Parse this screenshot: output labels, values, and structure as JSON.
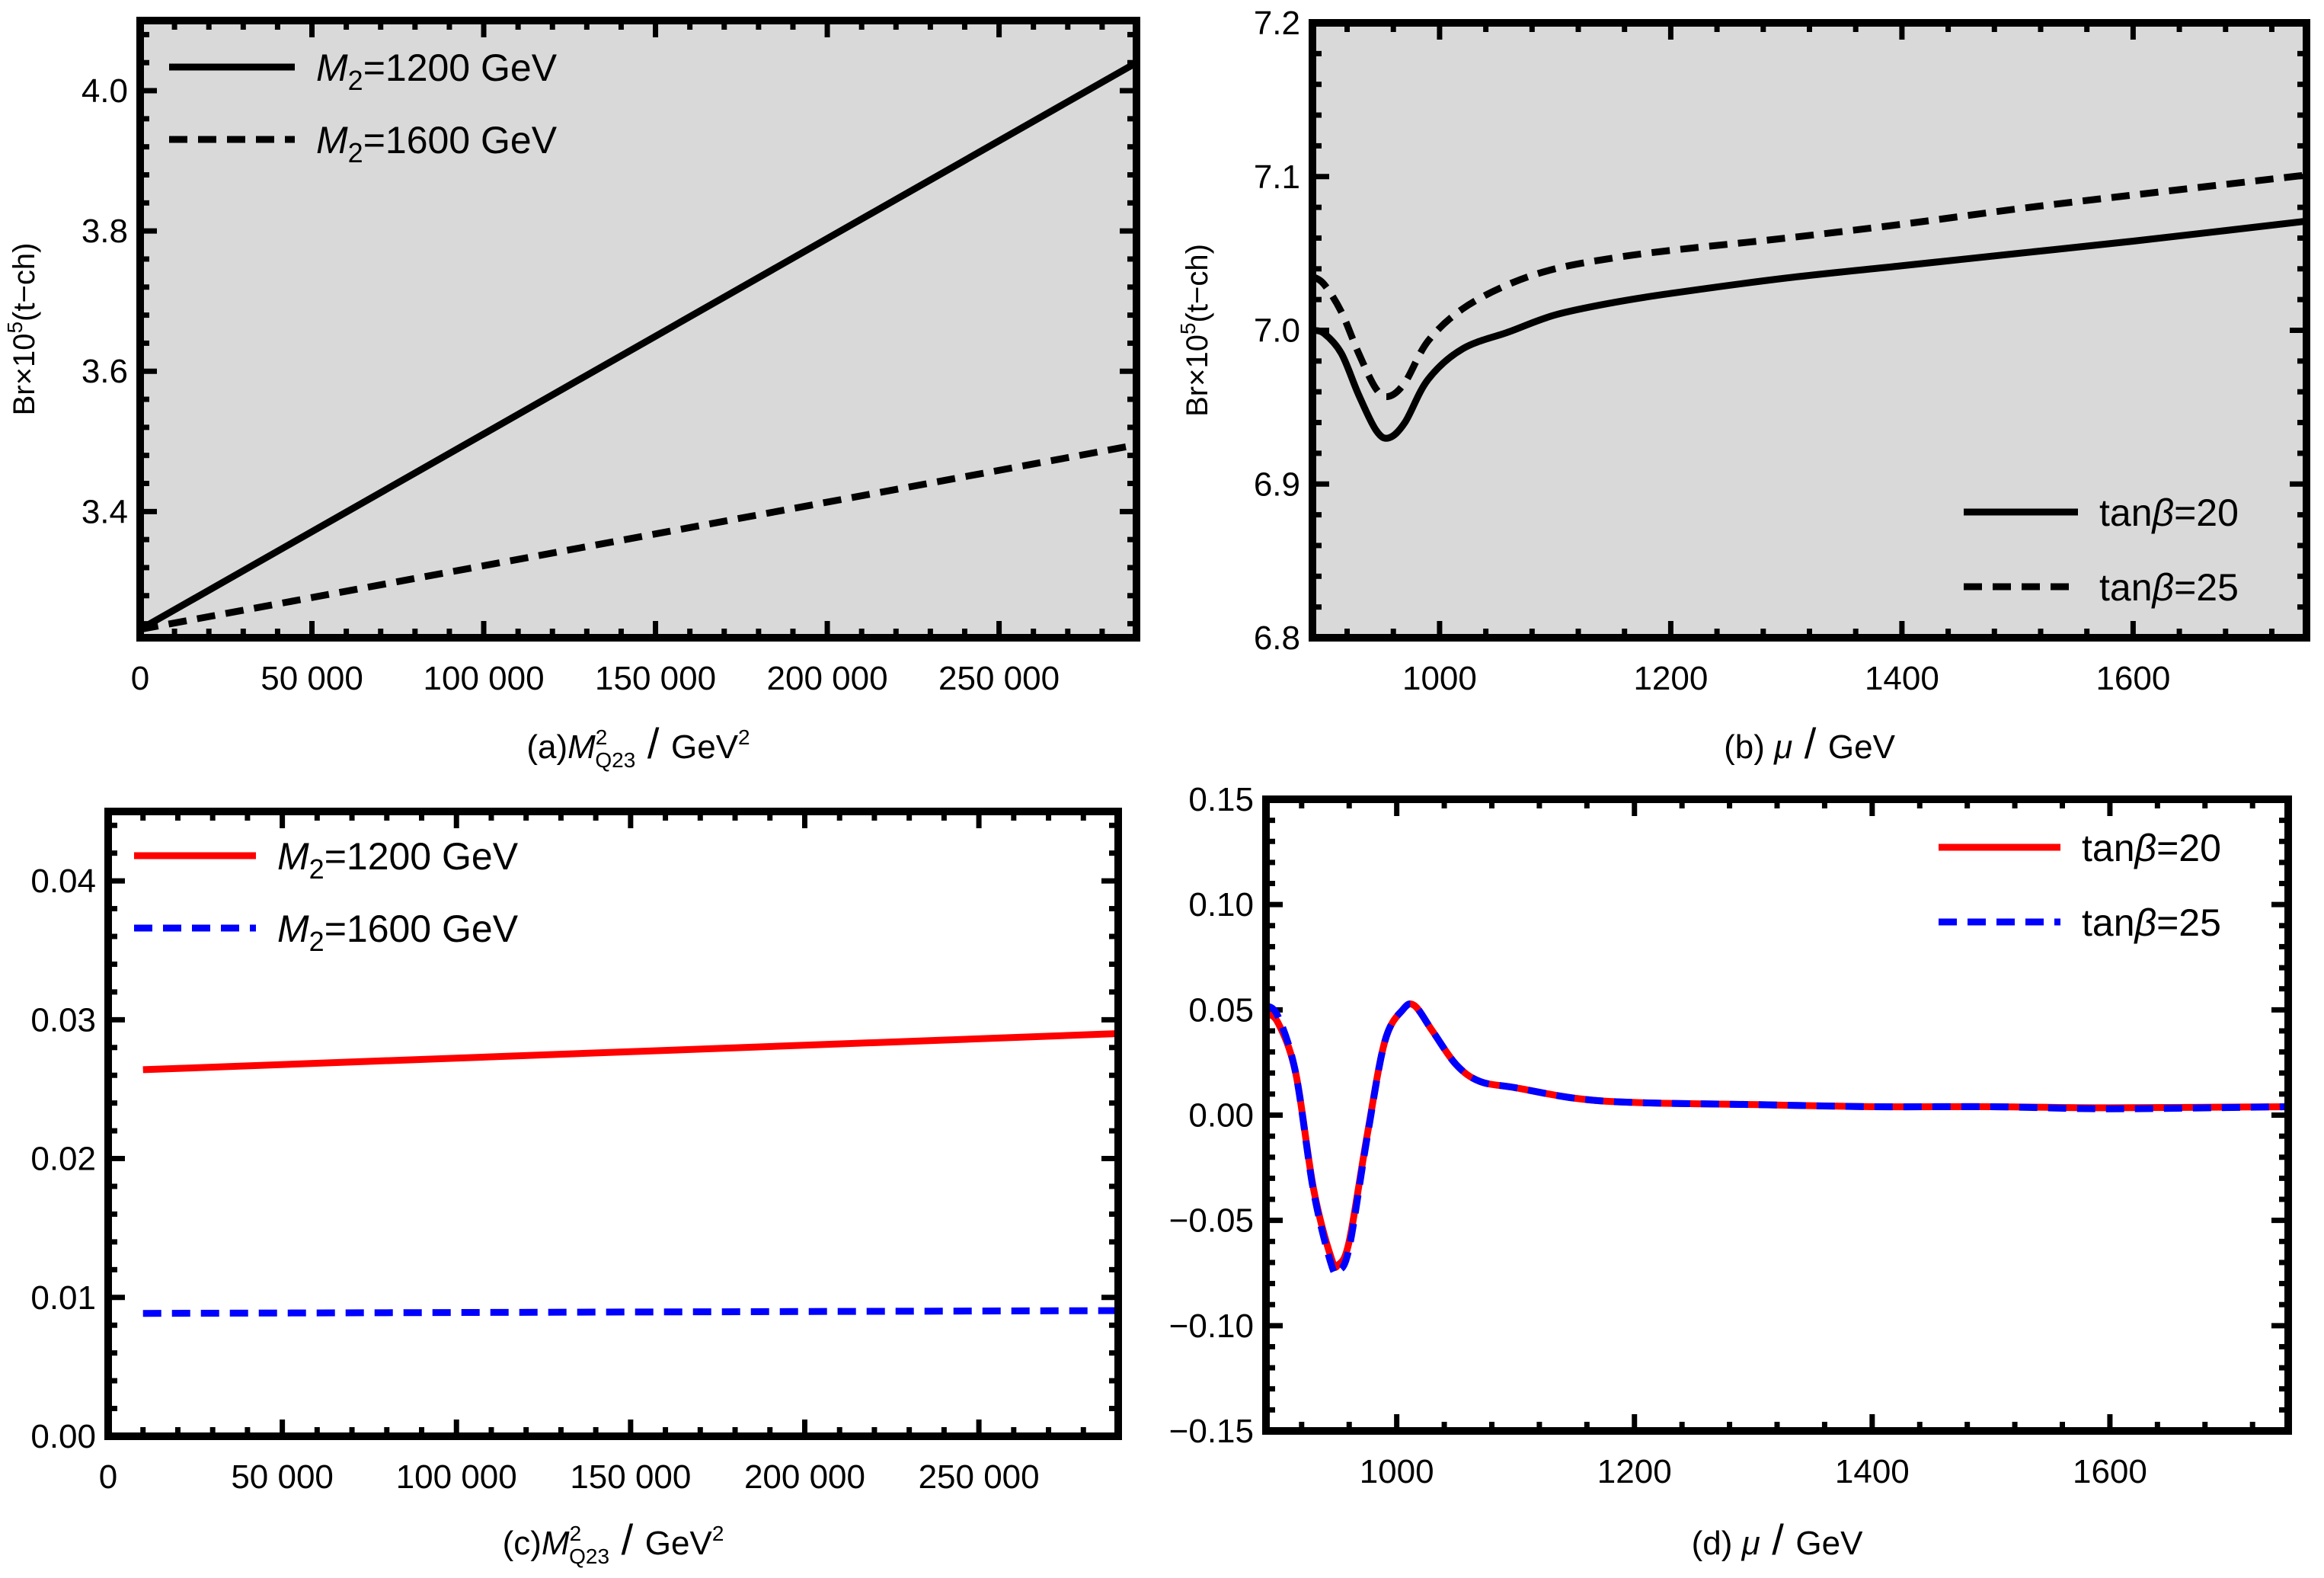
{
  "chart_data": [
    {
      "id": "a",
      "type": "line",
      "caption": {
        "prefix": "(a)",
        "var": "M",
        "sup": "2",
        "sub": "Q23",
        "unit": "GeV",
        "unit_sup": "2"
      },
      "xlabel": "(a) M²_Q23 / GeV²",
      "ylabel": {
        "base": "Br×10",
        "sup": "5",
        "rest": "(t−ch)"
      },
      "xlim": [
        0,
        290000
      ],
      "ylim": [
        3.22,
        4.1
      ],
      "xticks": [
        0,
        50000,
        100000,
        150000,
        200000,
        250000
      ],
      "xtick_labels": [
        "0",
        "50 000",
        "100 000",
        "150 000",
        "200 000",
        "250 000"
      ],
      "yticks": [
        3.4,
        3.6,
        3.8,
        4.0
      ],
      "ytick_labels": [
        "3.4",
        "3.6",
        "3.8",
        "4.0"
      ],
      "background": "#d9d9d9",
      "legend_position": "top-left",
      "series": [
        {
          "name": "M2=1200 GeV",
          "label_var": "M",
          "label_sub": "2",
          "label_rest": "=1200 GeV",
          "color": "#000000",
          "dash": "solid",
          "x": [
            0,
            290000
          ],
          "y": [
            3.232,
            4.04
          ]
        },
        {
          "name": "M2=1600 GeV",
          "label_var": "M",
          "label_sub": "2",
          "label_rest": "=1600 GeV",
          "color": "#000000",
          "dash": "dashed",
          "x": [
            0,
            290000
          ],
          "y": [
            3.232,
            3.495
          ]
        }
      ]
    },
    {
      "id": "b",
      "type": "line",
      "caption": {
        "prefix": "(b)",
        "var": "μ",
        "unit": "GeV"
      },
      "xlabel": "(b) μ / GeV",
      "ylabel": {
        "base": "Br×10",
        "sup": "5",
        "rest": "(t−ch)"
      },
      "xlim": [
        890,
        1750
      ],
      "ylim": [
        6.8,
        7.2
      ],
      "xticks": [
        1000,
        1200,
        1400,
        1600
      ],
      "xtick_labels": [
        "1000",
        "1200",
        "1400",
        "1600"
      ],
      "yticks": [
        6.8,
        6.9,
        7.0,
        7.1,
        7.2
      ],
      "ytick_labels": [
        "6.8",
        "6.9",
        "7.0",
        "7.1",
        "7.2"
      ],
      "background": "#d9d9d9",
      "legend_position": "bottom-right",
      "series": [
        {
          "name": "tanβ=20",
          "label_var": "tan",
          "label_greek": "β",
          "label_rest": "=20",
          "color": "#000000",
          "dash": "solid",
          "x": [
            890,
            900,
            915,
            930,
            945,
            956,
            970,
            990,
            1020,
            1060,
            1100,
            1150,
            1200,
            1300,
            1400,
            1500,
            1600,
            1750
          ],
          "y": [
            7.0,
            6.998,
            6.985,
            6.958,
            6.935,
            6.93,
            6.94,
            6.968,
            6.988,
            6.999,
            7.01,
            7.018,
            7.024,
            7.034,
            7.042,
            7.05,
            7.058,
            7.071
          ]
        },
        {
          "name": "tanβ=25",
          "label_var": "tan",
          "label_greek": "β",
          "label_rest": "=25",
          "color": "#000000",
          "dash": "dashed",
          "x": [
            890,
            900,
            915,
            930,
            945,
            956,
            970,
            990,
            1020,
            1060,
            1100,
            1150,
            1200,
            1300,
            1400,
            1500,
            1600,
            1750
          ],
          "y": [
            7.035,
            7.03,
            7.012,
            6.985,
            6.962,
            6.957,
            6.966,
            6.993,
            7.014,
            7.03,
            7.04,
            7.047,
            7.052,
            7.06,
            7.069,
            7.079,
            7.088,
            7.101
          ]
        }
      ]
    },
    {
      "id": "c",
      "type": "line",
      "caption": {
        "prefix": "(c)",
        "var": "M",
        "sup": "2",
        "sub": "Q23",
        "unit": "GeV",
        "unit_sup": "2"
      },
      "xlabel": "(c) M²_Q23 / GeV²",
      "ylabel": "",
      "xlim": [
        0,
        290000
      ],
      "ylim": [
        0.0,
        0.045
      ],
      "xticks": [
        0,
        50000,
        100000,
        150000,
        200000,
        250000
      ],
      "xtick_labels": [
        "0",
        "50 000",
        "100 000",
        "150 000",
        "200 000",
        "250 000"
      ],
      "yticks": [
        0.0,
        0.01,
        0.02,
        0.03,
        0.04
      ],
      "ytick_labels": [
        "0.00",
        "0.01",
        "0.02",
        "0.03",
        "0.04"
      ],
      "background": "#ffffff",
      "legend_position": "top-left",
      "series": [
        {
          "name": "M2=1200 GeV",
          "label_var": "M",
          "label_sub": "2",
          "label_rest": "=1200 GeV",
          "color": "#ff0000",
          "dash": "solid",
          "x": [
            10000,
            290000
          ],
          "y": [
            0.0264,
            0.029
          ]
        },
        {
          "name": "M2=1600 GeV",
          "label_var": "M",
          "label_sub": "2",
          "label_rest": "=1600 GeV",
          "color": "#0000ff",
          "dash": "dashed",
          "x": [
            10000,
            290000
          ],
          "y": [
            0.00885,
            0.00905
          ]
        }
      ]
    },
    {
      "id": "d",
      "type": "line",
      "caption": {
        "prefix": "(d)",
        "var": "μ",
        "unit": "GeV"
      },
      "xlabel": "(d) μ / GeV",
      "ylabel": "",
      "xlim": [
        890,
        1750
      ],
      "ylim": [
        -0.15,
        0.15
      ],
      "xticks": [
        1000,
        1200,
        1400,
        1600
      ],
      "xtick_labels": [
        "1000",
        "1200",
        "1400",
        "1600"
      ],
      "yticks": [
        -0.15,
        -0.1,
        -0.05,
        0.0,
        0.05,
        0.1,
        0.15
      ],
      "ytick_labels": [
        "−0.15",
        "−0.10",
        "−0.05",
        "0.00",
        "0.05",
        "0.10",
        "0.15"
      ],
      "background": "#ffffff",
      "legend_position": "top-right",
      "series": [
        {
          "name": "tanβ=20",
          "label_var": "tan",
          "label_greek": "β",
          "label_rest": "=20",
          "color": "#ff0000",
          "dash": "solid",
          "x": [
            890,
            900,
            915,
            930,
            945,
            951,
            960,
            975,
            990,
            1005,
            1015,
            1030,
            1050,
            1070,
            1100,
            1150,
            1200,
            1300,
            1400,
            1500,
            1600,
            1750
          ],
          "y": [
            0.048,
            0.044,
            0.02,
            -0.035,
            -0.068,
            -0.071,
            -0.06,
            -0.01,
            0.035,
            0.05,
            0.052,
            0.04,
            0.024,
            0.016,
            0.013,
            0.008,
            0.006,
            0.005,
            0.004,
            0.004,
            0.0035,
            0.004
          ]
        },
        {
          "name": "tanβ=25",
          "label_var": "tan",
          "label_greek": "β",
          "label_rest": "=25",
          "color": "#0000ff",
          "dash": "dashed",
          "x": [
            890,
            900,
            915,
            930,
            945,
            951,
            960,
            975,
            990,
            1005,
            1015,
            1030,
            1050,
            1070,
            1100,
            1150,
            1200,
            1300,
            1400,
            1500,
            1600,
            1750
          ],
          "y": [
            0.052,
            0.047,
            0.02,
            -0.036,
            -0.071,
            -0.074,
            -0.063,
            -0.011,
            0.035,
            0.05,
            0.052,
            0.04,
            0.024,
            0.016,
            0.013,
            0.008,
            0.006,
            0.005,
            0.004,
            0.004,
            0.003,
            0.004
          ]
        }
      ]
    }
  ]
}
